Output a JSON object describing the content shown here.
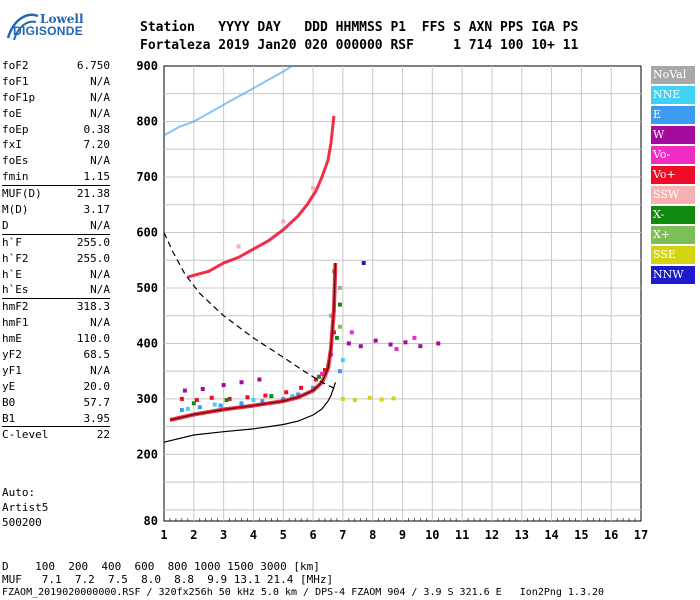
{
  "logo": {
    "line1": "Lowell",
    "line2": "DIGISONDE"
  },
  "header": {
    "row1": "Station   YYYY DAY   DDD HHMMSS P1  FFS S AXN PPS IGA PS",
    "row2": "Fortaleza 2019 Jan20 020 000000 RSF     1 714 100 10+ 11"
  },
  "params": {
    "group1": [
      {
        "label": "foF2",
        "value": "6.750"
      },
      {
        "label": "foF1",
        "value": "N/A"
      },
      {
        "label": "foF1p",
        "value": "N/A"
      },
      {
        "label": "foE",
        "value": "N/A"
      },
      {
        "label": "foEp",
        "value": "0.38"
      },
      {
        "label": "fxI",
        "value": "7.20"
      },
      {
        "label": "foEs",
        "value": "N/A"
      },
      {
        "label": "fmin",
        "value": "1.15"
      }
    ],
    "group2": [
      {
        "label": "MUF(D)",
        "value": "21.38"
      },
      {
        "label": "M(D)",
        "value": "3.17"
      },
      {
        "label": "D",
        "value": "N/A"
      }
    ],
    "group3": [
      {
        "label": "h`F",
        "value": "255.0"
      },
      {
        "label": "h`F2",
        "value": "255.0"
      },
      {
        "label": "h`E",
        "value": "N/A"
      },
      {
        "label": "h`Es",
        "value": "N/A"
      }
    ],
    "group4": [
      {
        "label": "hmF2",
        "value": "318.3"
      },
      {
        "label": "hmF1",
        "value": "N/A"
      },
      {
        "label": "hmE",
        "value": "110.0"
      },
      {
        "label": "yF2",
        "value": "68.5"
      },
      {
        "label": "yF1",
        "value": "N/A"
      },
      {
        "label": "yE",
        "value": "20.0"
      },
      {
        "label": "B0",
        "value": "57.7"
      },
      {
        "label": "B1",
        "value": "3.95"
      }
    ],
    "group5": [
      {
        "label": "C-level",
        "value": "22"
      }
    ]
  },
  "auto": {
    "line1": "Auto:",
    "line2": "Artist5",
    "line3": "500200"
  },
  "legend": [
    {
      "label": "NoVal",
      "color": "#a8a8a8"
    },
    {
      "label": "NNE",
      "color": "#3fd2f5"
    },
    {
      "label": "E",
      "color": "#3b9bf0"
    },
    {
      "label": "W",
      "color": "#a30a9e"
    },
    {
      "label": "Vo-",
      "color": "#f02cc4"
    },
    {
      "label": "Vo+",
      "color": "#ee0c28"
    },
    {
      "label": "SSW",
      "color": "#f7b1b1"
    },
    {
      "label": "X-",
      "color": "#118a11"
    },
    {
      "label": "X+",
      "color": "#7cbf58"
    },
    {
      "label": "SSE",
      "color": "#d3d30f"
    },
    {
      "label": "NNW",
      "color": "#1c1ccc"
    }
  ],
  "footer": {
    "row1": "D    100  200  400  600  800 1000 1500 3000 [km]",
    "row2": "MUF   7.1  7.2  7.5  8.0  8.8  9.9 13.1 21.4 [MHz]",
    "row3": "FZAOM_2019020000000.RSF / 320fx256h 50 kHz 5.0 km / DPS-4 FZAOM 904 / 3.9 S 321.6 E   Ion2Png 1.3.20"
  },
  "chart_data": {
    "type": "scatter",
    "xlim": [
      1,
      17
    ],
    "ylim": [
      80,
      900
    ],
    "x_ticks": [
      1,
      2,
      3,
      4,
      5,
      6,
      7,
      8,
      9,
      10,
      11,
      12,
      13,
      14,
      15,
      16,
      17
    ],
    "y_ticks": [
      80,
      200,
      300,
      400,
      500,
      600,
      700,
      800,
      900
    ],
    "grid": true,
    "legend_placement": "right",
    "trace_curve": {
      "x": [
        1.2,
        2.0,
        3.0,
        4.0,
        5.0,
        5.5,
        6.0,
        6.3,
        6.5,
        6.6,
        6.7,
        6.75
      ],
      "y": [
        262,
        272,
        281,
        288,
        296,
        303,
        315,
        330,
        355,
        390,
        460,
        545
      ]
    },
    "profile_curve": {
      "x": [
        1.0,
        2.0,
        3.0,
        4.0,
        5.0,
        5.5,
        6.0,
        6.3,
        6.5,
        6.6,
        6.7,
        6.75
      ],
      "y": [
        222,
        235,
        241,
        246,
        254,
        260,
        271,
        282,
        296,
        306,
        321,
        330
      ]
    },
    "dashed_curve": {
      "x": [
        1.0,
        1.3,
        1.7,
        2.2,
        3.0,
        4.0,
        5.0,
        5.7,
        6.3,
        6.75
      ],
      "y": [
        600,
        565,
        525,
        490,
        450,
        410,
        375,
        350,
        330,
        318
      ]
    },
    "second_hop_trace": {
      "x": [
        1.8,
        2.5,
        3.0,
        3.5,
        4.0,
        4.5,
        5.0,
        5.5,
        5.8,
        6.1,
        6.3,
        6.5,
        6.6,
        6.7
      ],
      "y": [
        520,
        530,
        545,
        555,
        570,
        585,
        605,
        630,
        650,
        675,
        700,
        730,
        760,
        810
      ]
    },
    "third_hop_trace": {
      "x": [
        1.0,
        1.5,
        2.0,
        2.5,
        3.0,
        3.5,
        4.0,
        4.5,
        5.0,
        5.3
      ],
      "y": [
        775,
        790,
        800,
        815,
        830,
        845,
        860,
        875,
        890,
        900
      ]
    },
    "scatter_points": [
      {
        "series": "Vo+",
        "x": 1.6,
        "y": 300
      },
      {
        "series": "Vo+",
        "x": 2.1,
        "y": 298
      },
      {
        "series": "Vo+",
        "x": 2.6,
        "y": 302
      },
      {
        "series": "Vo+",
        "x": 3.2,
        "y": 300
      },
      {
        "series": "Vo+",
        "x": 3.8,
        "y": 303
      },
      {
        "series": "Vo+",
        "x": 4.4,
        "y": 306
      },
      {
        "series": "Vo+",
        "x": 5.1,
        "y": 312
      },
      {
        "series": "Vo+",
        "x": 5.6,
        "y": 320
      },
      {
        "series": "Vo+",
        "x": 6.1,
        "y": 335
      },
      {
        "series": "Vo+",
        "x": 6.4,
        "y": 352
      },
      {
        "series": "Vo+",
        "x": 6.6,
        "y": 380
      },
      {
        "series": "Vo+",
        "x": 6.7,
        "y": 420
      },
      {
        "series": "W",
        "x": 1.7,
        "y": 315
      },
      {
        "series": "W",
        "x": 2.3,
        "y": 318
      },
      {
        "series": "W",
        "x": 3.0,
        "y": 325
      },
      {
        "series": "W",
        "x": 3.6,
        "y": 330
      },
      {
        "series": "W",
        "x": 4.2,
        "y": 335
      },
      {
        "series": "W",
        "x": 7.2,
        "y": 400
      },
      {
        "series": "W",
        "x": 7.6,
        "y": 395
      },
      {
        "series": "W",
        "x": 8.1,
        "y": 405
      },
      {
        "series": "W",
        "x": 8.6,
        "y": 398
      },
      {
        "series": "W",
        "x": 9.1,
        "y": 402
      },
      {
        "series": "W",
        "x": 9.6,
        "y": 395
      },
      {
        "series": "W",
        "x": 10.2,
        "y": 400
      },
      {
        "series": "E",
        "x": 1.6,
        "y": 280
      },
      {
        "series": "E",
        "x": 2.2,
        "y": 285
      },
      {
        "series": "E",
        "x": 2.9,
        "y": 288
      },
      {
        "series": "E",
        "x": 3.6,
        "y": 292
      },
      {
        "series": "E",
        "x": 4.3,
        "y": 296
      },
      {
        "series": "E",
        "x": 5.0,
        "y": 300
      },
      {
        "series": "E",
        "x": 5.5,
        "y": 308
      },
      {
        "series": "E",
        "x": 6.0,
        "y": 320
      },
      {
        "series": "E",
        "x": 6.9,
        "y": 350
      },
      {
        "series": "NNE",
        "x": 1.8,
        "y": 282
      },
      {
        "series": "NNE",
        "x": 2.7,
        "y": 290
      },
      {
        "series": "NNE",
        "x": 4.0,
        "y": 298
      },
      {
        "series": "NNE",
        "x": 5.3,
        "y": 305
      },
      {
        "series": "NNE",
        "x": 7.0,
        "y": 370
      },
      {
        "series": "X-",
        "x": 2.0,
        "y": 292
      },
      {
        "series": "X-",
        "x": 3.1,
        "y": 298
      },
      {
        "series": "X-",
        "x": 4.6,
        "y": 305
      },
      {
        "series": "X-",
        "x": 6.2,
        "y": 340
      },
      {
        "series": "X-",
        "x": 6.8,
        "y": 410
      },
      {
        "series": "X-",
        "x": 6.9,
        "y": 470
      },
      {
        "series": "X+",
        "x": 6.5,
        "y": 360
      },
      {
        "series": "X+",
        "x": 6.9,
        "y": 430
      },
      {
        "series": "X+",
        "x": 6.7,
        "y": 530
      },
      {
        "series": "SSE",
        "x": 7.0,
        "y": 300
      },
      {
        "series": "SSE",
        "x": 7.4,
        "y": 298
      },
      {
        "series": "SSE",
        "x": 7.9,
        "y": 302
      },
      {
        "series": "SSE",
        "x": 8.3,
        "y": 299
      },
      {
        "series": "SSE",
        "x": 8.7,
        "y": 301
      },
      {
        "series": "Vo-",
        "x": 6.3,
        "y": 345
      },
      {
        "series": "Vo-",
        "x": 6.6,
        "y": 380
      },
      {
        "series": "Vo-",
        "x": 7.3,
        "y": 420
      },
      {
        "series": "Vo-",
        "x": 8.8,
        "y": 390
      },
      {
        "series": "Vo-",
        "x": 9.4,
        "y": 410
      },
      {
        "series": "NNW",
        "x": 7.7,
        "y": 545
      },
      {
        "series": "SSW",
        "x": 3.5,
        "y": 575
      },
      {
        "series": "SSW",
        "x": 5.0,
        "y": 620
      },
      {
        "series": "SSW",
        "x": 6.0,
        "y": 680
      },
      {
        "series": "NoVal",
        "x": 6.9,
        "y": 500
      },
      {
        "series": "NoVal",
        "x": 6.6,
        "y": 450
      }
    ]
  }
}
